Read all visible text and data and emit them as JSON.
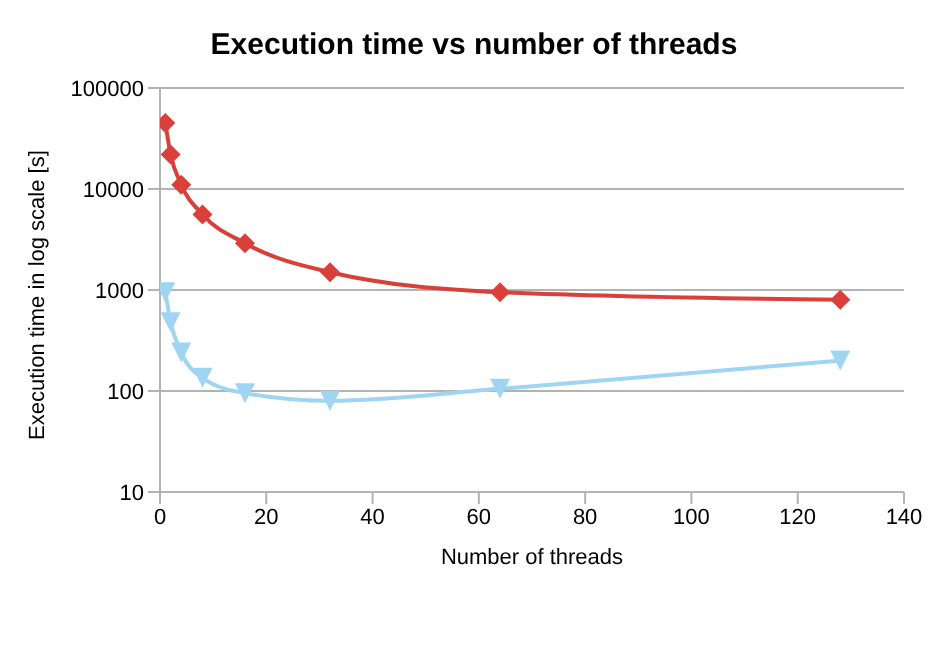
{
  "chart_data": {
    "type": "line",
    "title": "Execution time vs number of threads",
    "xlabel": "Number of threads",
    "ylabel": "Execution time in log scale [s]",
    "x": [
      1,
      2,
      4,
      8,
      16,
      32,
      64,
      128
    ],
    "series": [
      {
        "color": "#d9403a",
        "marker": "diamond",
        "values": [
          45000,
          22000,
          11000,
          5600,
          2900,
          1500,
          950,
          800
        ]
      },
      {
        "color": "#9fd5f2",
        "marker": "triangle",
        "values": [
          950,
          480,
          240,
          135,
          95,
          80,
          105,
          200
        ]
      }
    ],
    "xlim": [
      0,
      140
    ],
    "xticks": [
      0,
      20,
      40,
      60,
      80,
      100,
      120,
      140
    ],
    "ylim": [
      10,
      100000
    ],
    "yticks": [
      10,
      100,
      1000,
      10000,
      100000
    ],
    "log": "y",
    "grid": "y",
    "legend": false
  }
}
